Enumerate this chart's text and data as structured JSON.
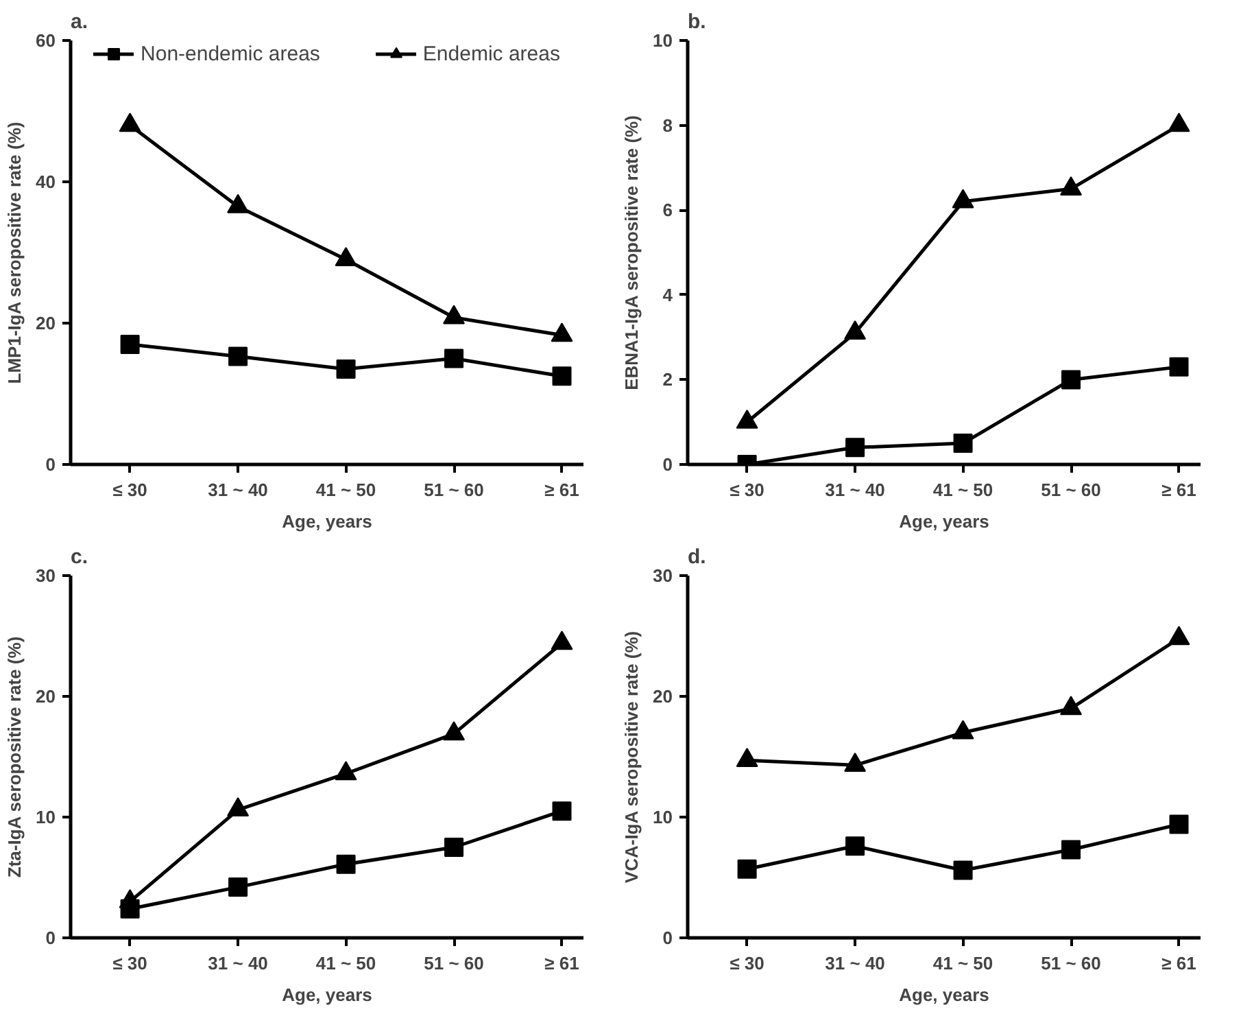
{
  "chart_data": [
    {
      "type": "line",
      "title": "a.",
      "xlabel": "Age, years",
      "ylabel": "LMP1-IgA seropositive rate (%)",
      "categories": [
        "≤ 30",
        "31 ~ 40",
        "41 ~ 50",
        "51 ~ 60",
        "≥ 61"
      ],
      "ylim": [
        0,
        60
      ],
      "yticks": [
        0,
        20,
        40,
        60
      ],
      "grid": false,
      "legend": "top",
      "series": [
        {
          "name": "Non-endemic areas",
          "color": "#000000",
          "marker": "square",
          "values": [
            17,
            15.3,
            13.5,
            15,
            12.5
          ]
        },
        {
          "name": "Endemic areas",
          "color": "#000000",
          "marker": "triangle",
          "values": [
            48,
            36.5,
            29,
            20.8,
            18.3
          ]
        }
      ]
    },
    {
      "type": "line",
      "title": "b.",
      "xlabel": "Age, years",
      "ylabel": "EBNA1-IgA seropositive rate (%)",
      "categories": [
        "≤ 30",
        "31 ~ 40",
        "41 ~ 50",
        "51 ~ 60",
        "≥ 61"
      ],
      "ylim": [
        0,
        10
      ],
      "yticks": [
        0,
        2,
        4,
        6,
        8,
        10
      ],
      "grid": false,
      "series": [
        {
          "color": "#000000",
          "marker": "square",
          "values": [
            0,
            0.4,
            0.5,
            2.0,
            2.3
          ]
        },
        {
          "color": "#000000",
          "marker": "triangle",
          "values": [
            1.0,
            3.1,
            6.2,
            6.5,
            8.0
          ]
        }
      ]
    },
    {
      "type": "line",
      "title": "c.",
      "xlabel": "Age, years",
      "ylabel": "Zta-IgA seropositive rate (%)",
      "categories": [
        "≤ 30",
        "31 ~ 40",
        "41 ~ 50",
        "51 ~ 60",
        "≥ 61"
      ],
      "ylim": [
        0,
        30
      ],
      "yticks": [
        0,
        10,
        20,
        30
      ],
      "grid": false,
      "series": [
        {
          "color": "#000000",
          "marker": "square",
          "values": [
            2.4,
            4.2,
            6.1,
            7.5,
            10.5
          ]
        },
        {
          "color": "#000000",
          "marker": "triangle",
          "values": [
            3,
            10.6,
            13.6,
            16.9,
            24.4
          ]
        }
      ]
    },
    {
      "type": "line",
      "title": "d.",
      "xlabel": "Age, years",
      "ylabel": "VCA-IgA seropositive rate (%)",
      "categories": [
        "≤ 30",
        "31 ~ 40",
        "41 ~ 50",
        "51 ~ 60",
        "≥ 61"
      ],
      "ylim": [
        0,
        30
      ],
      "yticks": [
        0,
        10,
        20,
        30
      ],
      "grid": false,
      "series": [
        {
          "color": "#000000",
          "marker": "square",
          "values": [
            5.7,
            7.6,
            5.6,
            7.3,
            9.4
          ]
        },
        {
          "color": "#000000",
          "marker": "triangle",
          "values": [
            14.7,
            14.3,
            17.0,
            19.0,
            24.8
          ]
        }
      ]
    }
  ]
}
